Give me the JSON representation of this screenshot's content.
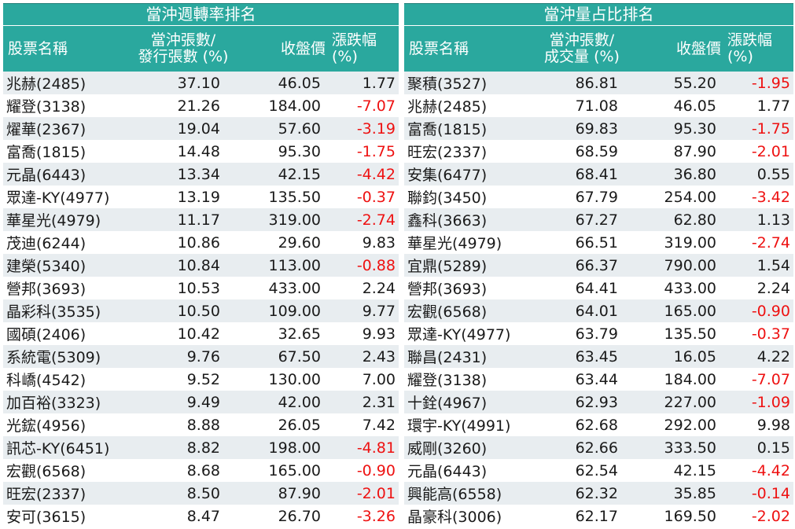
{
  "theme": {
    "header_bg": "#2aa89e",
    "stripe_bg": "#e8edf0",
    "negative_color": "#ee1111",
    "text_color": "#1a1a1a"
  },
  "left": {
    "title": "當沖週轉率排名",
    "headers": {
      "name": "股票名稱",
      "ratio_line1": "當沖張數/",
      "ratio_line2": "發行張數 (%)",
      "price": "收盤價",
      "change": "漲跌幅 (%)"
    },
    "rows": [
      {
        "name": "兆赫(2485)",
        "ratio": "37.10",
        "price": "46.05",
        "change": "1.77"
      },
      {
        "name": "耀登(3138)",
        "ratio": "21.26",
        "price": "184.00",
        "change": "-7.07"
      },
      {
        "name": "燿華(2367)",
        "ratio": "19.04",
        "price": "57.60",
        "change": "-3.19"
      },
      {
        "name": "富喬(1815)",
        "ratio": "14.48",
        "price": "95.30",
        "change": "-1.75"
      },
      {
        "name": "元晶(6443)",
        "ratio": "13.34",
        "price": "42.15",
        "change": "-4.42"
      },
      {
        "name": "眾達-KY(4977)",
        "ratio": "13.19",
        "price": "135.50",
        "change": "-0.37"
      },
      {
        "name": "華星光(4979)",
        "ratio": "11.17",
        "price": "319.00",
        "change": "-2.74"
      },
      {
        "name": "茂迪(6244)",
        "ratio": "10.86",
        "price": "29.60",
        "change": "9.83"
      },
      {
        "name": "建榮(5340)",
        "ratio": "10.84",
        "price": "113.00",
        "change": "-0.88"
      },
      {
        "name": "營邦(3693)",
        "ratio": "10.53",
        "price": "433.00",
        "change": "2.24"
      },
      {
        "name": "晶彩科(3535)",
        "ratio": "10.50",
        "price": "109.00",
        "change": "9.77"
      },
      {
        "name": "國碩(2406)",
        "ratio": "10.42",
        "price": "32.65",
        "change": "9.93"
      },
      {
        "name": "系統電(5309)",
        "ratio": "9.76",
        "price": "67.50",
        "change": "2.43"
      },
      {
        "name": "科嶠(4542)",
        "ratio": "9.52",
        "price": "130.00",
        "change": "7.00"
      },
      {
        "name": "加百裕(3323)",
        "ratio": "9.49",
        "price": "42.00",
        "change": "2.31"
      },
      {
        "name": "光鋐(4956)",
        "ratio": "8.88",
        "price": "26.05",
        "change": "7.42"
      },
      {
        "name": "訊芯-KY(6451)",
        "ratio": "8.82",
        "price": "198.00",
        "change": "-4.81"
      },
      {
        "name": "宏觀(6568)",
        "ratio": "8.68",
        "price": "165.00",
        "change": "-0.90"
      },
      {
        "name": "旺宏(2337)",
        "ratio": "8.50",
        "price": "87.90",
        "change": "-2.01"
      },
      {
        "name": "安可(3615)",
        "ratio": "8.47",
        "price": "26.70",
        "change": "-3.26"
      }
    ]
  },
  "right": {
    "title": "當沖量占比排名",
    "headers": {
      "name": "股票名稱",
      "ratio_line1": "當沖張數/",
      "ratio_line2": "成交量 (%)",
      "price": "收盤價",
      "change": "漲跌幅 (%)"
    },
    "rows": [
      {
        "name": "聚積(3527)",
        "ratio": "86.81",
        "price": "55.20",
        "change": "-1.95"
      },
      {
        "name": "兆赫(2485)",
        "ratio": "71.08",
        "price": "46.05",
        "change": "1.77"
      },
      {
        "name": "富喬(1815)",
        "ratio": "69.83",
        "price": "95.30",
        "change": "-1.75"
      },
      {
        "name": "旺宏(2337)",
        "ratio": "68.59",
        "price": "87.90",
        "change": "-2.01"
      },
      {
        "name": "安集(6477)",
        "ratio": "68.41",
        "price": "36.80",
        "change": "0.55"
      },
      {
        "name": "聯鈞(3450)",
        "ratio": "67.79",
        "price": "254.00",
        "change": "-3.42"
      },
      {
        "name": "鑫科(3663)",
        "ratio": "67.27",
        "price": "62.80",
        "change": "1.13"
      },
      {
        "name": "華星光(4979)",
        "ratio": "66.51",
        "price": "319.00",
        "change": "-2.74"
      },
      {
        "name": "宜鼎(5289)",
        "ratio": "66.37",
        "price": "790.00",
        "change": "1.54"
      },
      {
        "name": "營邦(3693)",
        "ratio": "64.41",
        "price": "433.00",
        "change": "2.24"
      },
      {
        "name": "宏觀(6568)",
        "ratio": "64.01",
        "price": "165.00",
        "change": "-0.90"
      },
      {
        "name": "眾達-KY(4977)",
        "ratio": "63.79",
        "price": "135.50",
        "change": "-0.37"
      },
      {
        "name": "聯昌(2431)",
        "ratio": "63.45",
        "price": "16.05",
        "change": "4.22"
      },
      {
        "name": "耀登(3138)",
        "ratio": "63.44",
        "price": "184.00",
        "change": "-7.07"
      },
      {
        "name": "十銓(4967)",
        "ratio": "62.93",
        "price": "227.00",
        "change": "-1.09"
      },
      {
        "name": "環宇-KY(4991)",
        "ratio": "62.68",
        "price": "292.00",
        "change": "9.98"
      },
      {
        "name": "威剛(3260)",
        "ratio": "62.66",
        "price": "333.50",
        "change": "0.15"
      },
      {
        "name": "元晶(6443)",
        "ratio": "62.54",
        "price": "42.15",
        "change": "-4.42"
      },
      {
        "name": "興能高(6558)",
        "ratio": "62.32",
        "price": "35.85",
        "change": "-0.14"
      },
      {
        "name": "晶豪科(3006)",
        "ratio": "62.17",
        "price": "169.50",
        "change": "-2.02"
      }
    ]
  }
}
